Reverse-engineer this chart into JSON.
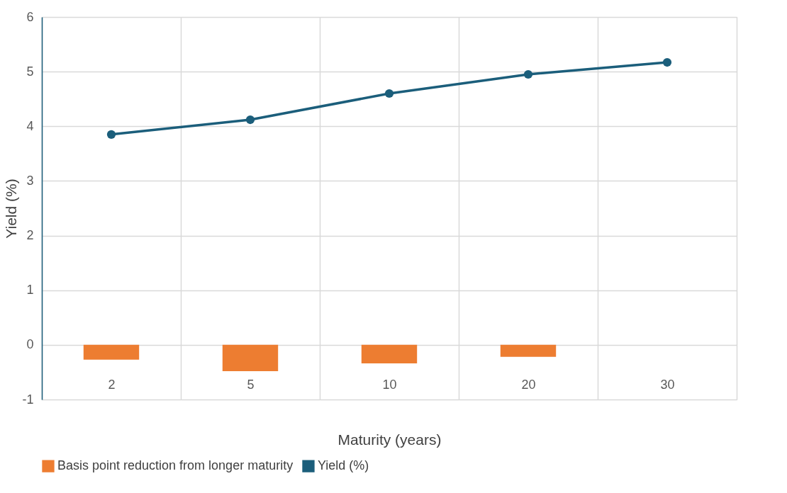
{
  "chart_data": {
    "type": "bar",
    "xlabel": "Maturity (years)",
    "ylabel": "Yield (%)",
    "categories": [
      "2",
      "5",
      "10",
      "20",
      "30"
    ],
    "series": [
      {
        "name": "Basis point reduction from longer maturity",
        "color": "#ed7d31",
        "values": [
          -0.27,
          -0.48,
          -0.34,
          -0.22,
          null
        ]
      },
      {
        "name": "Yield (%)",
        "type": "line",
        "color": "#1b5e7b",
        "values": [
          3.85,
          4.12,
          4.6,
          4.95,
          5.17
        ],
        "marker": "circle"
      }
    ],
    "ylim": [
      -1,
      6
    ],
    "yticks": [
      -1,
      0,
      1,
      2,
      3,
      4,
      5,
      6
    ],
    "grid": true,
    "legend": "bottom"
  }
}
